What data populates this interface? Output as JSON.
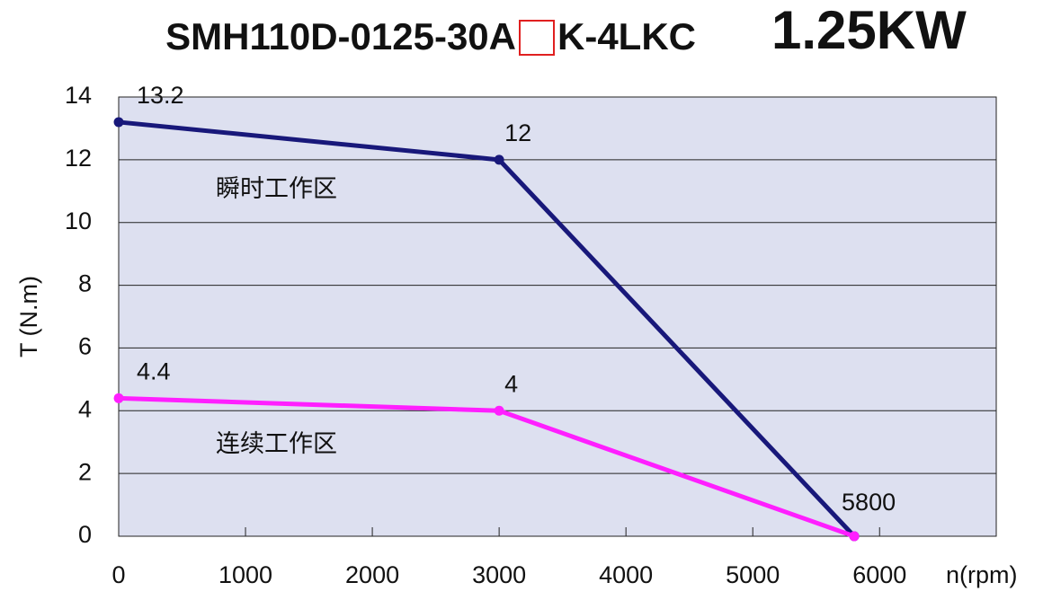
{
  "chart_data": {
    "type": "line",
    "title": [
      "SMH110D-0125-30A",
      "K-4LKC"
    ],
    "power": "1.25KW",
    "x_label": "n(rpm)",
    "y_label": "T (N.m)",
    "annotations": [
      "瞬时工作区",
      "连续工作区"
    ],
    "x": [
      0,
      3000,
      5800
    ],
    "series": [
      {
        "color": "#18187a",
        "values": [
          13.2,
          12,
          0
        ]
      },
      {
        "color": "#ff1fff",
        "values": [
          4.4,
          4,
          0
        ]
      }
    ],
    "xlim": [
      0,
      6920
    ],
    "xticks": [
      0,
      1000,
      2000,
      3000,
      4000,
      5000,
      6000
    ],
    "ylim": [
      0,
      14
    ],
    "yticks": [
      0,
      2,
      4,
      6,
      8,
      10,
      12,
      14
    ],
    "grid": true,
    "plot_background": "#dde0f0"
  }
}
